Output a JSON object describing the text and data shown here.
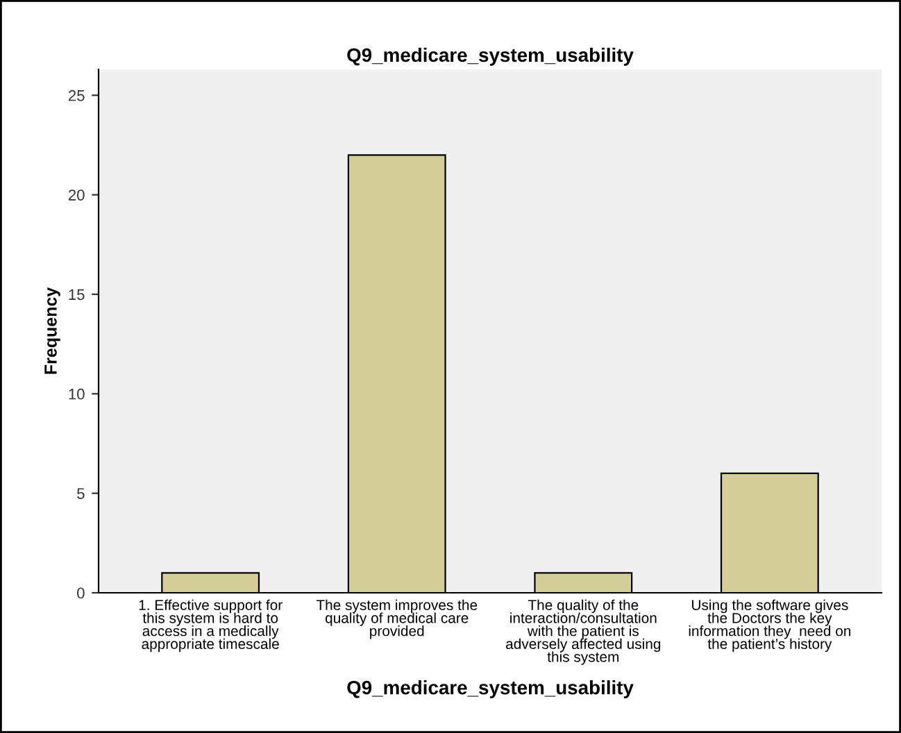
{
  "chart_data": {
    "type": "bar",
    "title": "Q9_medicare_system_usability",
    "xlabel": "Q9_medicare_system_usability",
    "ylabel": "Frequency",
    "categories": [
      "1. Effective support for\nthis system is hard to\naccess in a medically\nappropriate timescale",
      "The system improves the\nquality of medical care\nprovided",
      "The quality of the\ninteraction/consultation\nwith the patient is\nadversely affected using\nthis system",
      "Using the software gives\nthe Doctors the key\ninformation they  need on\nthe patient’s history"
    ],
    "values": [
      1,
      22,
      1,
      6
    ],
    "color": "#d3ce98",
    "ylim": [
      0,
      26.3
    ],
    "yticks": [
      0,
      5,
      10,
      15,
      20,
      25
    ],
    "grid": false,
    "legend": false
  }
}
